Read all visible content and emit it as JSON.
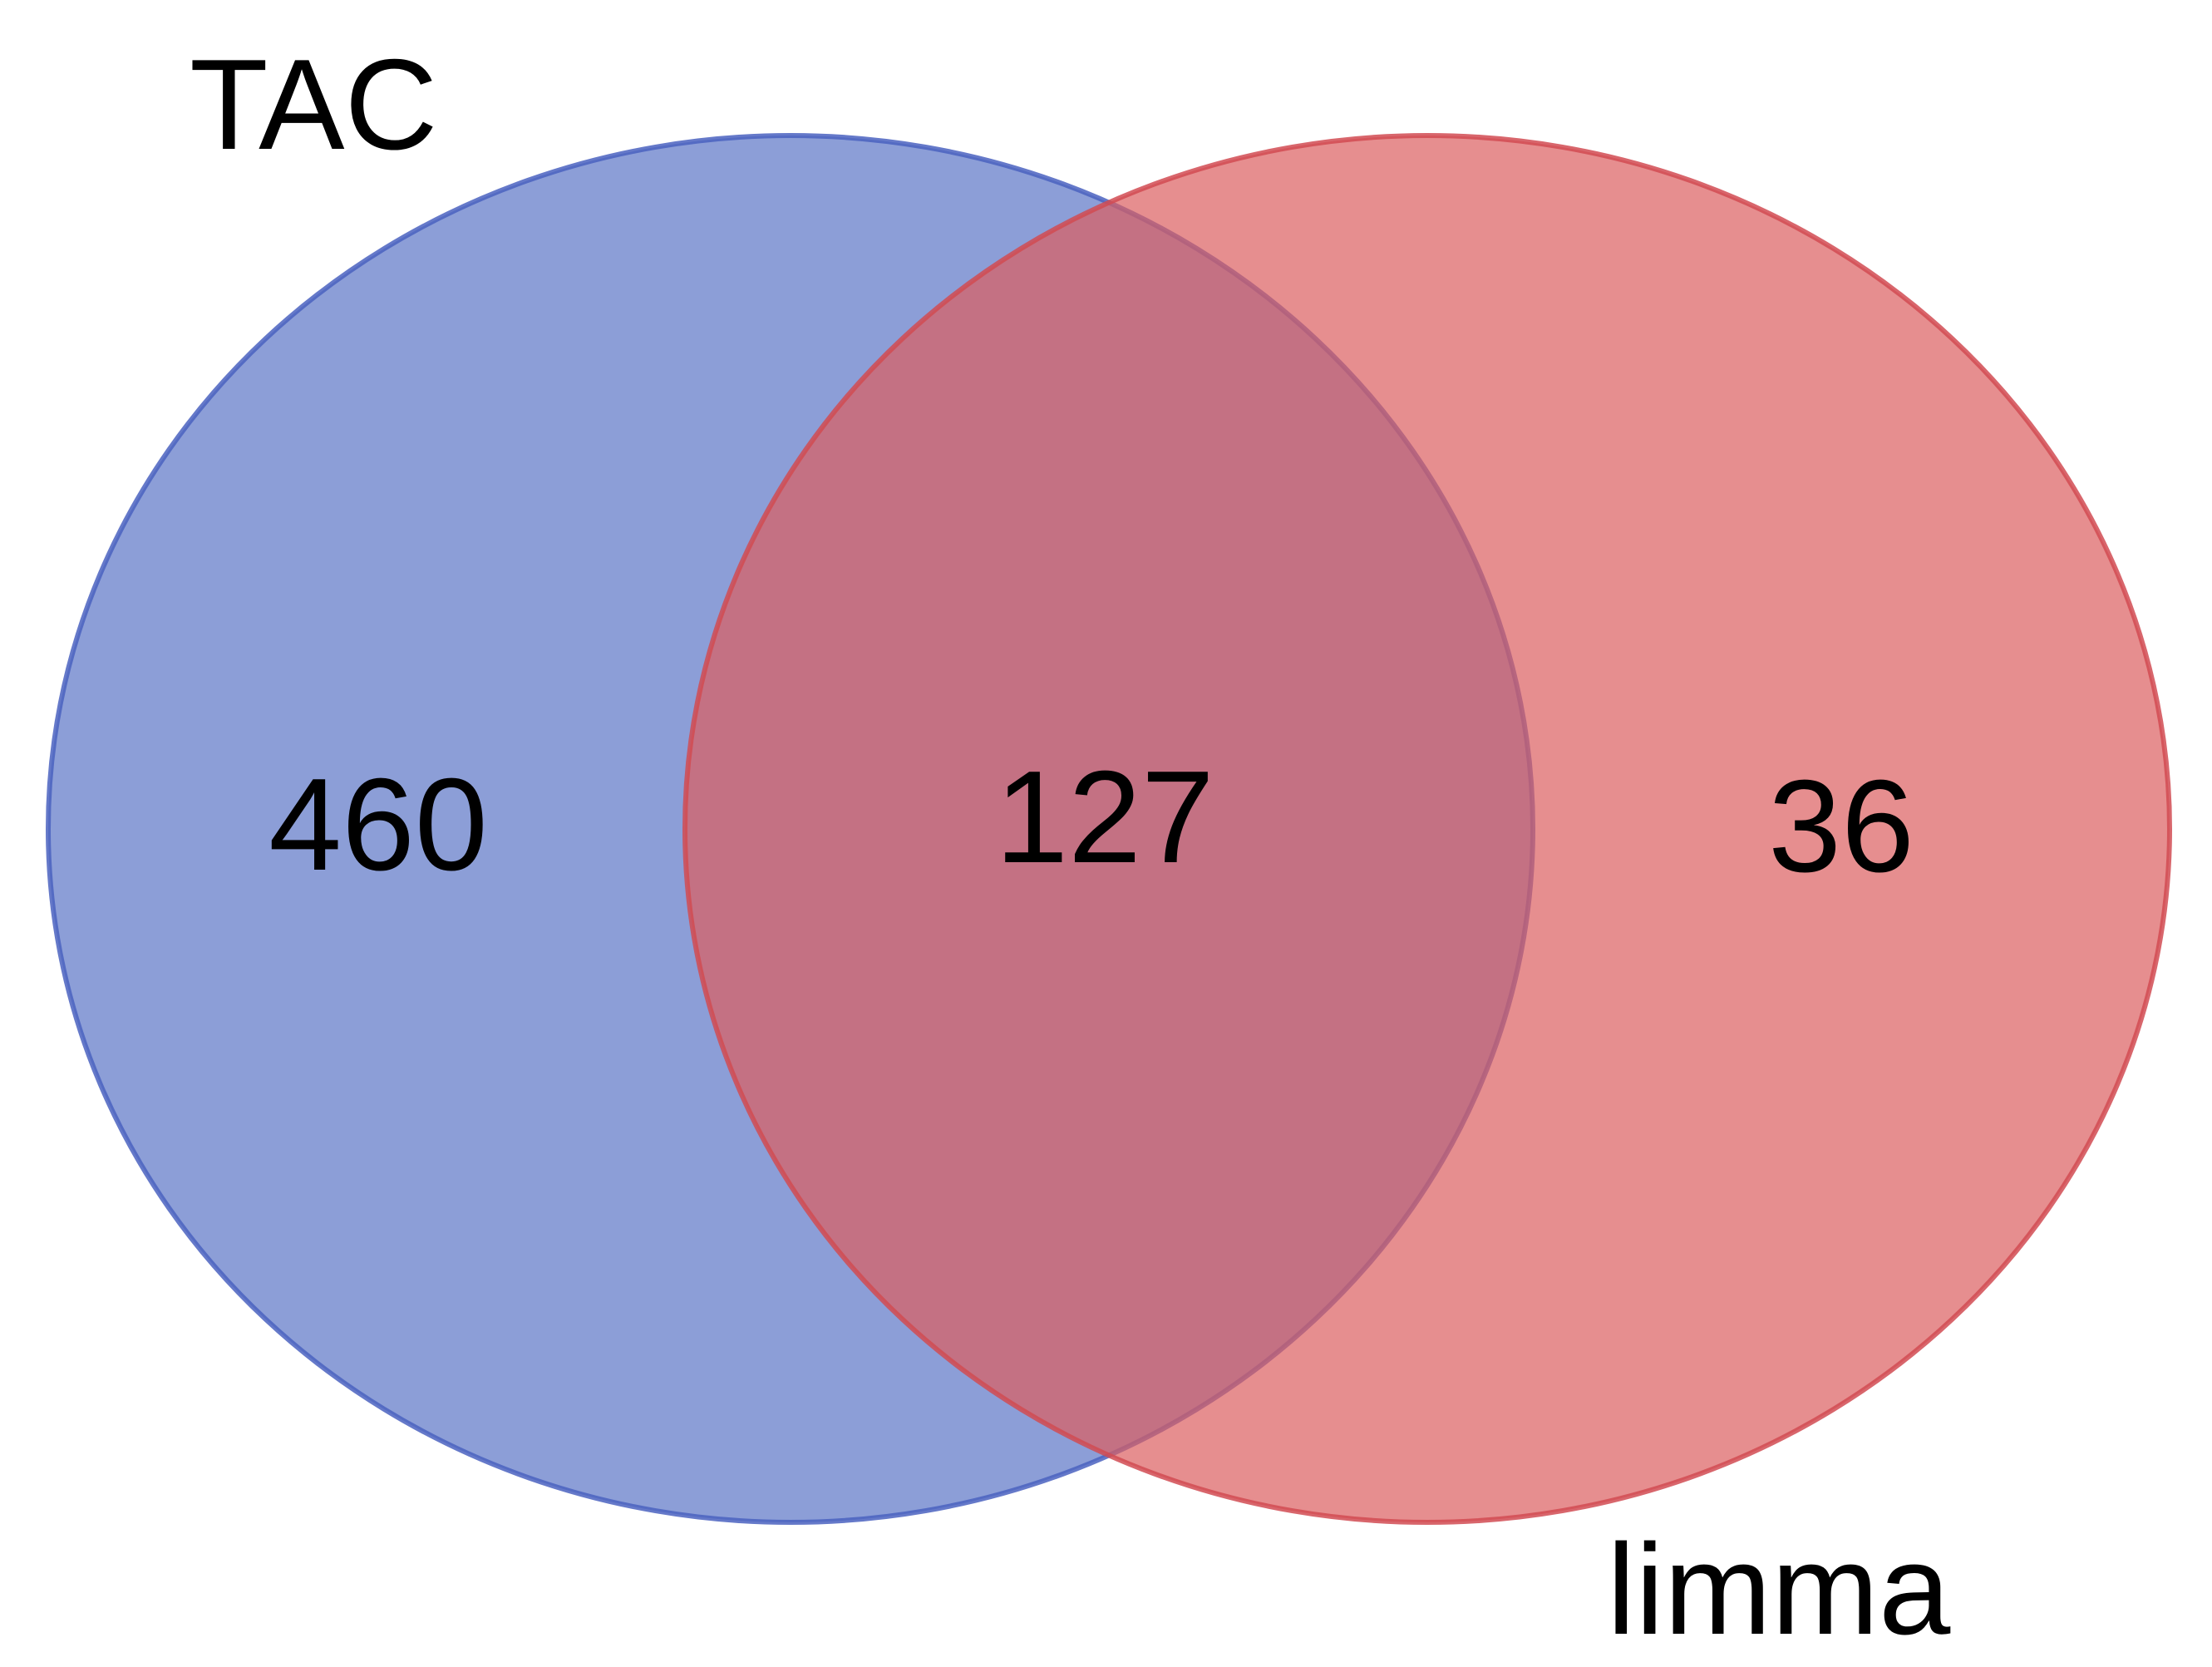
{
  "sets": [
    {
      "id": "tac",
      "label": "TAC",
      "fill": "#5670C4",
      "stroke": "#4A62C0"
    },
    {
      "id": "limma",
      "label": "limma",
      "fill": "#DB5E5F",
      "stroke": "#D14B52"
    }
  ],
  "regions": {
    "tac_only": "460",
    "intersection": "127",
    "limma_only": "36"
  },
  "colors": {
    "tac_fill": "#5670C4",
    "limma_fill": "#DB5E5F",
    "intersection_fill": "#A95C76",
    "background": "#FFFFFF"
  }
}
